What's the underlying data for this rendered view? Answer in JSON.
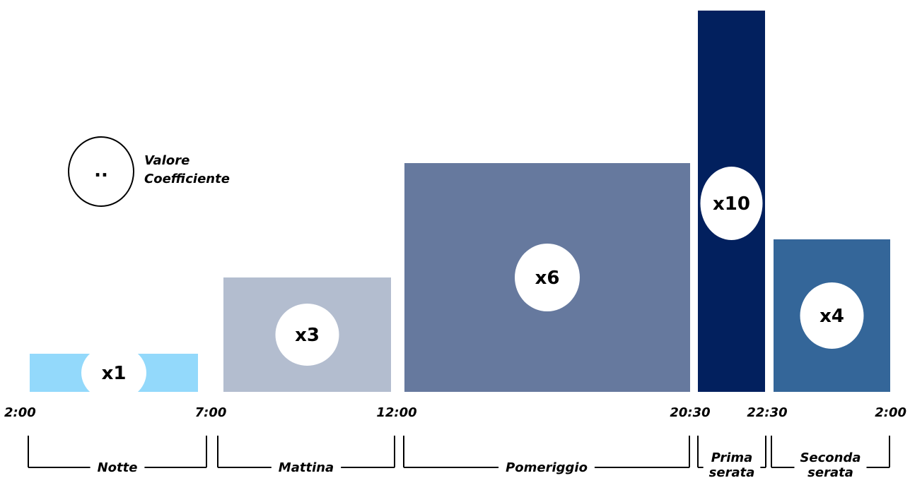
{
  "chart_data": {
    "type": "bar",
    "x_axis": "time of day",
    "ticks": [
      "2:00",
      "7:00",
      "12:00",
      "20:30",
      "22:30",
      "2:00"
    ],
    "categories": [
      "Notte",
      "Mattina",
      "Pomeriggio",
      "Prima serata",
      "Seconda serata"
    ],
    "intervals": [
      {
        "name": "Notte",
        "start": "2:00",
        "end": "7:00",
        "value": 1,
        "label": "x1",
        "color": "#93d9fb"
      },
      {
        "name": "Mattina",
        "start": "7:00",
        "end": "12:00",
        "value": 3,
        "label": "x3",
        "color": "#b3bdcf"
      },
      {
        "name": "Pomeriggio",
        "start": "12:00",
        "end": "20:30",
        "value": 6,
        "label": "x6",
        "color": "#66799e"
      },
      {
        "name": "Prima serata",
        "start": "20:30",
        "end": "22:30",
        "value": 10,
        "label": "x10",
        "color": "#02205e"
      },
      {
        "name": "Seconda serata",
        "start": "22:30",
        "end": "2:00",
        "value": 4,
        "label": "x4",
        "color": "#346699"
      }
    ],
    "legend": {
      "symbol": "..",
      "text": [
        "Valore",
        "Coefficiente"
      ],
      "placement": "top-left"
    },
    "ylim": [
      0,
      10
    ],
    "grid": false
  }
}
